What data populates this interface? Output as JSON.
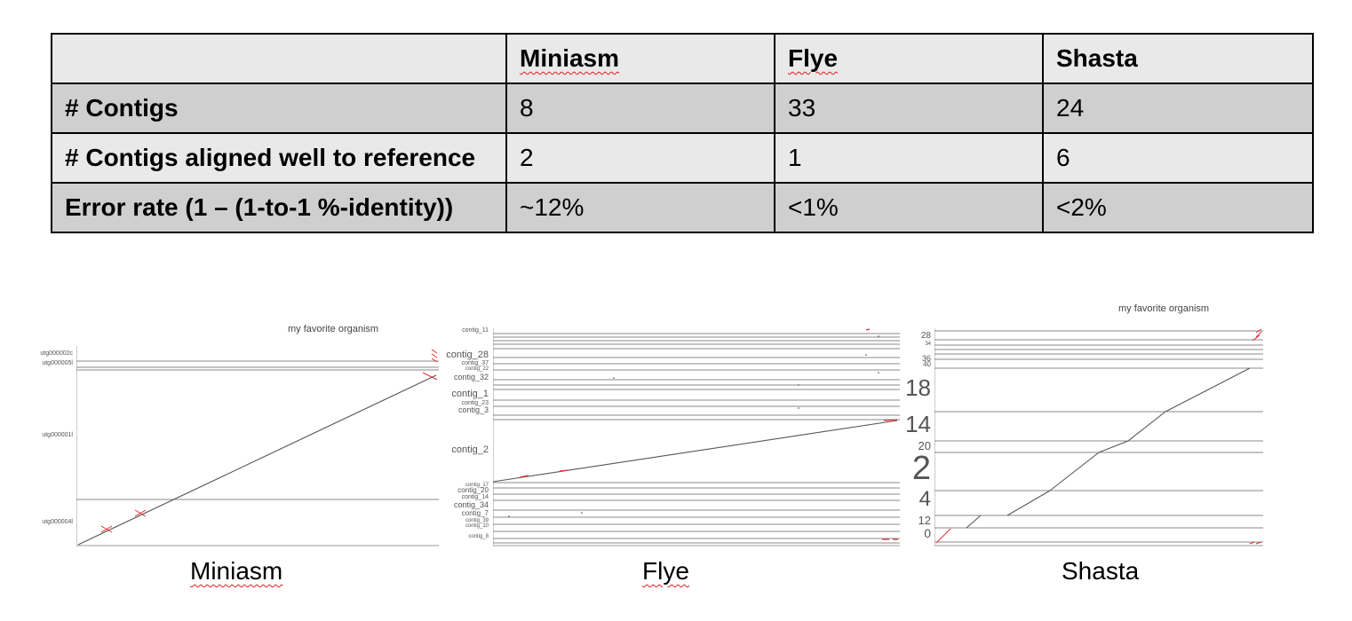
{
  "table": {
    "headers": [
      "",
      "Miniasm",
      "Flye",
      "Shasta"
    ],
    "rows": [
      {
        "label": "# Contigs",
        "values": [
          "8",
          "33",
          "24"
        ]
      },
      {
        "label": "# Contigs aligned well to reference",
        "values": [
          "2",
          "1",
          "6"
        ]
      },
      {
        "label": "Error rate (1 – (1-to-1 %-identity))",
        "values": [
          "~12%",
          "<1%",
          "<2%"
        ]
      }
    ]
  },
  "plots": {
    "miniasm": {
      "title": "my favorite organism",
      "labels": [
        "utg000002c",
        "utg000005l",
        "utg000001l",
        "utg000004l"
      ],
      "caption": "Miniasm"
    },
    "flye": {
      "labels": [
        "contig_11",
        "contig_28",
        "contig_37",
        "contig_22",
        "contig_32",
        "contig_1",
        "contig_23",
        "contig_3",
        "contig_2",
        "contig_17",
        "contig_20",
        "contig_14",
        "contig_34",
        "contig_7",
        "contig_39",
        "contig_10",
        "contig_8"
      ],
      "caption": "Flye"
    },
    "shasta": {
      "title": "my favorite organism",
      "labels": [
        "28",
        "34",
        "36",
        "40",
        "18",
        "14",
        "20",
        "2",
        "4",
        "12",
        "0"
      ],
      "caption": "Shasta"
    }
  }
}
